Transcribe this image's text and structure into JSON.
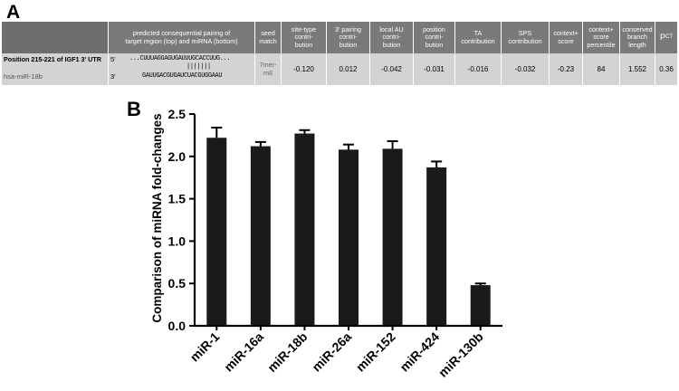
{
  "panel_a": {
    "letter": "A",
    "header": {
      "pairing": "predicted consequential pairing of\ntarget region (top) and miRNA (bottom)",
      "seed_match": "seed\nmatch",
      "site_type": "site-type\ncontri-\nbution",
      "three_prime": "3' pairing\ncontri-\nbution",
      "local_au": "local AU\ncontri-\nbution",
      "position": "position\ncontri-\nbution",
      "ta": "TA\ncontribution",
      "sps": "SPS\ncontribution",
      "context_score": "context+\nscore",
      "context_percentile": "context+\nscore\npercentile",
      "conserved_branch": "conserved\nbranch\nlength",
      "pct_main": "P",
      "pct_sub": "CT"
    },
    "row": {
      "position_label": "Position 215-221 of IGF1 3' UTR",
      "mirna_label": "hsa-miR-18b",
      "five_prime": "5'",
      "three_prime_end": "3'",
      "target_seq": "...CUUUAGGAGUGAUUUGCACCUUG...",
      "pair_lines": "|||||||",
      "mirna_seq": "GAUUGACGUGAUCUACGUGGAAU",
      "seed_match": "7mer-\nm8",
      "site_type": "-0.120",
      "three_prime": "0.012",
      "local_au": "-0.042",
      "position": "-0.031",
      "ta": "-0.016",
      "sps": "-0.032",
      "context_score": "-0.23",
      "context_percentile": "84",
      "conserved_branch": "1.552",
      "pct": "0.36"
    }
  },
  "panel_b": {
    "letter": "B",
    "chart_data": {
      "type": "bar",
      "categories": [
        "miR-1",
        "miR-16a",
        "miR-18b",
        "miR-26a",
        "miR-152",
        "miR-424",
        "miR-130b"
      ],
      "values": [
        2.22,
        2.12,
        2.27,
        2.08,
        2.09,
        1.87,
        0.48
      ],
      "errors": [
        0.12,
        0.05,
        0.04,
        0.06,
        0.09,
        0.07,
        0.02
      ],
      "ylabel": "Comparison of miRNA fold-changes",
      "xlabel": "",
      "ylim": [
        0,
        2.5
      ],
      "yticks": [
        "0.0",
        "0.5",
        "1.0",
        "1.5",
        "2.0",
        "2.5"
      ],
      "bar_color": "#1a1a1a",
      "grid": false
    }
  }
}
